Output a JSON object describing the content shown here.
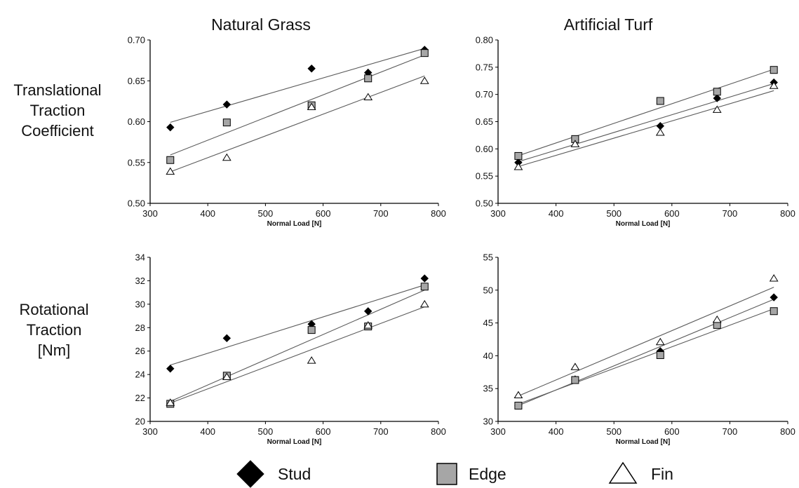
{
  "column_titles": [
    "Natural Grass",
    "Artificial Turf"
  ],
  "row_labels": [
    [
      "Translational",
      "Traction",
      "Coefficient"
    ],
    [
      "Rotational",
      "Traction",
      "[Nm]"
    ]
  ],
  "legend": [
    {
      "name": "Stud",
      "marker": "diamond",
      "fill": "#000000"
    },
    {
      "name": "Edge",
      "marker": "square",
      "fill": "#a6a6a6"
    },
    {
      "name": "Fin",
      "marker": "triangle",
      "fill": "#ffffff"
    }
  ],
  "colors": {
    "trendline": "#5a5a5a",
    "axis": "#000000",
    "marker_stroke": "#000000"
  },
  "chart_data": [
    {
      "type": "scatter",
      "panel": "Natural Grass - Translational",
      "xlabel": "Normal Load [N]",
      "xlim": [
        300,
        800
      ],
      "xticks": [
        300,
        400,
        500,
        600,
        700,
        800
      ],
      "ylim": [
        0.5,
        0.7
      ],
      "yticks": [
        "0.50",
        "0.55",
        "0.60",
        "0.65",
        "0.70"
      ],
      "x": [
        335,
        433,
        580,
        678,
        776
      ],
      "series": [
        {
          "name": "Stud",
          "values": [
            0.593,
            0.621,
            0.665,
            0.66,
            0.688
          ]
        },
        {
          "name": "Edge",
          "values": [
            0.553,
            0.599,
            0.62,
            0.653,
            0.684
          ]
        },
        {
          "name": "Fin",
          "values": [
            0.539,
            0.556,
            0.618,
            0.63,
            0.65
          ]
        }
      ],
      "grid": false,
      "trendlines": true
    },
    {
      "type": "scatter",
      "panel": "Artificial Turf - Translational",
      "xlabel": "Normal Load [N]",
      "xlim": [
        300,
        800
      ],
      "xticks": [
        300,
        400,
        500,
        600,
        700,
        800
      ],
      "ylim": [
        0.5,
        0.8
      ],
      "yticks": [
        "0.50",
        "0.55",
        "0.60",
        "0.65",
        "0.70",
        "0.75",
        "0.80"
      ],
      "x": [
        335,
        433,
        580,
        678,
        776
      ],
      "series": [
        {
          "name": "Stud",
          "values": [
            0.575,
            0.617,
            0.642,
            0.693,
            0.722
          ]
        },
        {
          "name": "Edge",
          "values": [
            0.587,
            0.618,
            0.688,
            0.705,
            0.745
          ]
        },
        {
          "name": "Fin",
          "values": [
            0.567,
            0.609,
            0.63,
            0.672,
            0.716
          ]
        }
      ],
      "grid": false,
      "trendlines": true
    },
    {
      "type": "scatter",
      "panel": "Natural Grass - Rotational",
      "xlabel": "Normal Load [N]",
      "xlim": [
        300,
        800
      ],
      "xticks": [
        300,
        400,
        500,
        600,
        700,
        800
      ],
      "ylim": [
        20,
        34
      ],
      "yticks": [
        "20",
        "22",
        "24",
        "26",
        "28",
        "30",
        "32",
        "34"
      ],
      "x": [
        335,
        433,
        580,
        678,
        776
      ],
      "series": [
        {
          "name": "Stud",
          "values": [
            24.5,
            27.1,
            28.3,
            29.4,
            32.2
          ]
        },
        {
          "name": "Edge",
          "values": [
            21.5,
            23.9,
            27.8,
            28.1,
            31.5
          ]
        },
        {
          "name": "Fin",
          "values": [
            21.6,
            23.8,
            25.2,
            28.2,
            30.0
          ]
        }
      ],
      "grid": false,
      "trendlines": true
    },
    {
      "type": "scatter",
      "panel": "Artificial Turf - Rotational",
      "xlabel": "Normal Load [N]",
      "xlim": [
        300,
        800
      ],
      "xticks": [
        300,
        400,
        500,
        600,
        700,
        800
      ],
      "ylim": [
        30,
        55
      ],
      "yticks": [
        "30",
        "35",
        "40",
        "45",
        "50",
        "55"
      ],
      "x": [
        335,
        433,
        580,
        678,
        776
      ],
      "series": [
        {
          "name": "Stud",
          "values": [
            32.4,
            36.4,
            40.7,
            45.0,
            48.9
          ]
        },
        {
          "name": "Edge",
          "values": [
            32.4,
            36.3,
            40.1,
            44.7,
            46.8
          ]
        },
        {
          "name": "Fin",
          "values": [
            34.0,
            38.3,
            42.1,
            45.5,
            51.8
          ]
        }
      ],
      "grid": false,
      "trendlines": true
    }
  ]
}
